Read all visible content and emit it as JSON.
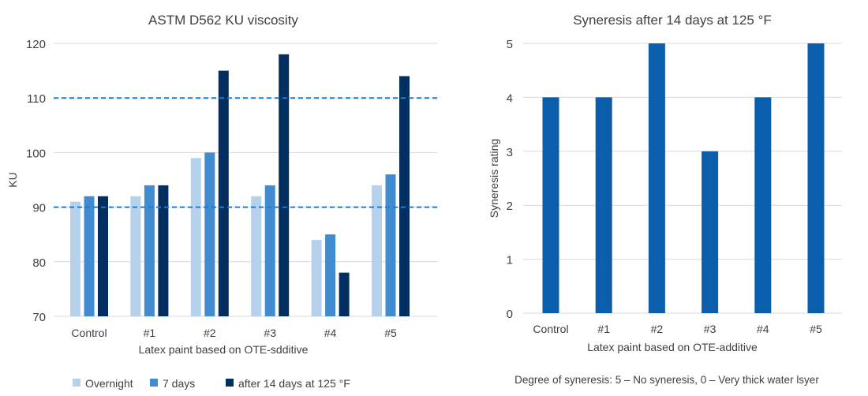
{
  "chart_data": [
    {
      "type": "bar",
      "title": "ASTM D562 KU viscosity",
      "xlabel": "Latex paint based on OTE-sdditive",
      "ylabel": "KU",
      "ylim": [
        70,
        120
      ],
      "yticks": [
        70,
        80,
        90,
        100,
        110,
        120
      ],
      "grid": true,
      "reference_lines": [
        90,
        110
      ],
      "reference_line_color": "#1a7fd0",
      "categories": [
        "Control",
        "#1",
        "#2",
        "#3",
        "#4",
        "#5"
      ],
      "series": [
        {
          "name": "Overnight",
          "color": "#b5d1ec",
          "values": [
            91,
            92,
            99,
            92,
            84,
            94
          ]
        },
        {
          "name": "7 days",
          "color": "#418bd0",
          "values": [
            92,
            94,
            100,
            94,
            85,
            96
          ]
        },
        {
          "name": "after 14 days at 125 °F",
          "color": "#022e60",
          "values": [
            92,
            94,
            115,
            118,
            78,
            114
          ]
        }
      ],
      "legend": "bottom"
    },
    {
      "type": "bar",
      "title": "Syneresis  after 14 days at 125 °F",
      "xlabel": "Latex paint based on OTE-additive",
      "ylabel": "Syneresis rating",
      "ylim": [
        0,
        5
      ],
      "yticks": [
        0,
        1,
        2,
        3,
        4,
        5
      ],
      "grid": true,
      "categories": [
        "Control",
        "#1",
        "#2",
        "#3",
        "#4",
        "#5"
      ],
      "color": "#0b5eac",
      "values": [
        4,
        4,
        5,
        3,
        4,
        5
      ],
      "footnote": "Degree of syneresis: 5 – No syneresis, 0 – Very thick water lsyer"
    }
  ]
}
